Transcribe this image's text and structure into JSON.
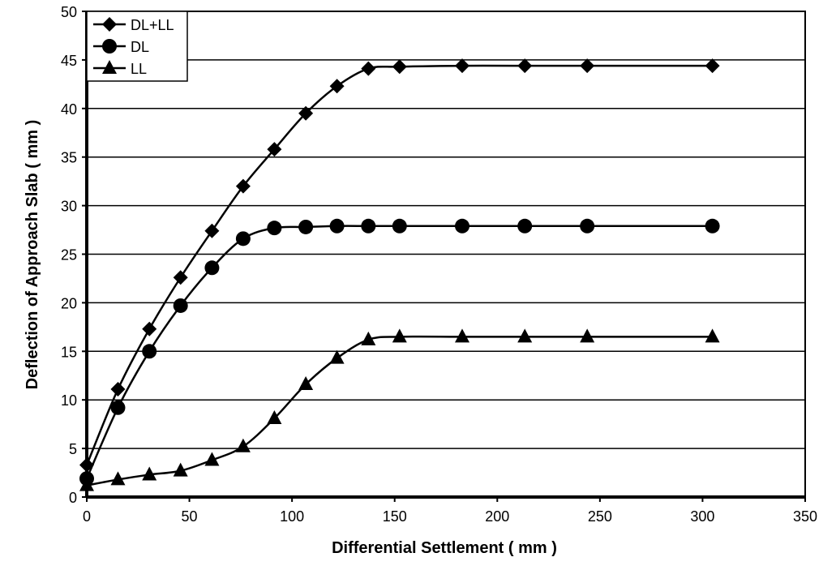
{
  "chart_data": {
    "type": "line",
    "title": "",
    "xlabel": "Differential Settlement ( mm )",
    "ylabel": "Deflection of Approach Slab ( mm )",
    "xlim": [
      0,
      350
    ],
    "ylim": [
      0,
      50
    ],
    "xticks": [
      0,
      50,
      100,
      150,
      200,
      250,
      300,
      350
    ],
    "yticks": [
      0,
      5,
      10,
      15,
      20,
      25,
      30,
      35,
      40,
      45,
      50
    ],
    "grid": "horizontal",
    "legend_position": "top-left",
    "x": [
      0,
      15.2,
      30.5,
      45.7,
      61,
      76.2,
      91.4,
      106.7,
      121.9,
      137.2,
      152.4,
      182.9,
      213.4,
      243.8,
      304.8
    ],
    "series": [
      {
        "name": "DL+LL",
        "marker": "diamond",
        "color": "#000000",
        "values": [
          3.3,
          11.1,
          17.3,
          22.6,
          27.4,
          32.0,
          35.8,
          39.5,
          42.3,
          44.1,
          44.3,
          44.4,
          44.4,
          44.4,
          44.4
        ]
      },
      {
        "name": "DL",
        "marker": "circle",
        "color": "#000000",
        "values": [
          1.9,
          9.2,
          15.0,
          19.7,
          23.6,
          26.6,
          27.7,
          27.8,
          27.9,
          27.9,
          27.9,
          27.9,
          27.9,
          27.9,
          27.9
        ]
      },
      {
        "name": "LL",
        "marker": "triangle",
        "color": "#000000",
        "values": [
          1.2,
          1.8,
          2.3,
          2.7,
          3.8,
          5.2,
          8.1,
          11.6,
          14.3,
          16.2,
          16.5,
          16.5,
          16.5,
          16.5,
          16.5
        ]
      }
    ]
  }
}
